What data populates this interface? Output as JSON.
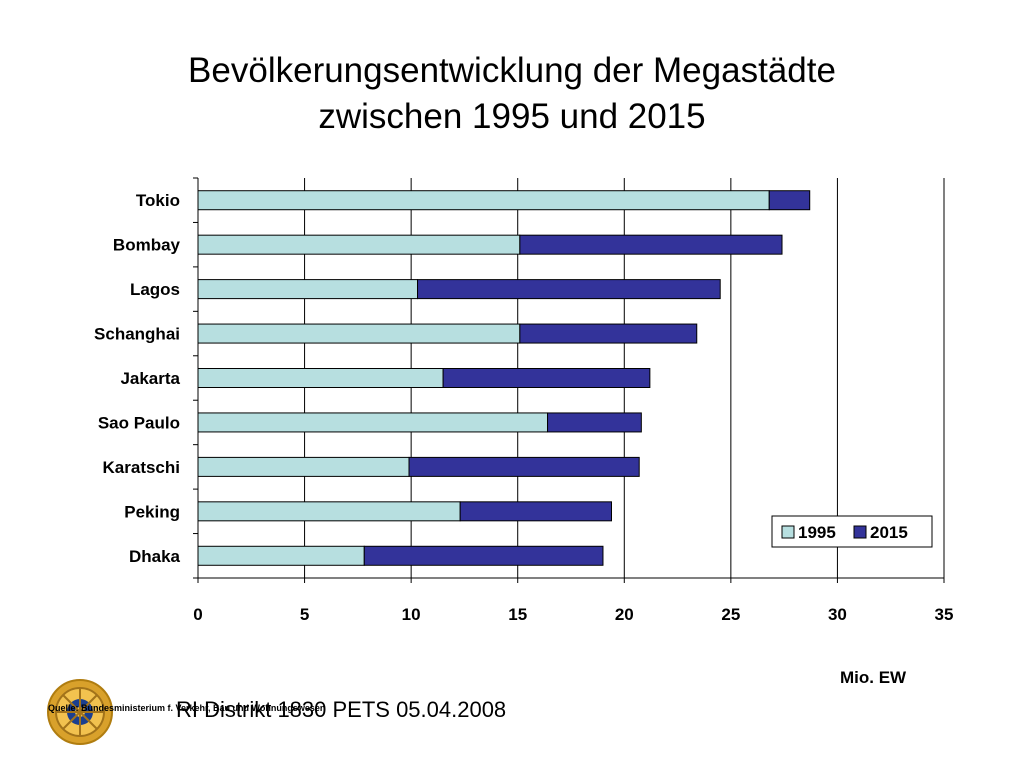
{
  "title": {
    "line1": "Bevölkerungsentwicklung der Megastädte",
    "line2": "zwischen 1995 und 2015"
  },
  "chart_data": {
    "type": "bar",
    "orientation": "horizontal",
    "stacked": true,
    "categories": [
      "Tokio",
      "Bombay",
      "Lagos",
      "Schanghai",
      "Jakarta",
      "Sao Paulo",
      "Karatschi",
      "Peking",
      "Dhaka"
    ],
    "series": [
      {
        "name": "1995",
        "values": [
          26.8,
          15.1,
          10.3,
          15.1,
          11.5,
          16.4,
          9.9,
          12.3,
          7.8
        ],
        "color": "#b7dfe0"
      },
      {
        "name": "2015",
        "values": [
          1.9,
          12.3,
          14.2,
          8.3,
          9.7,
          4.4,
          10.8,
          7.1,
          11.2
        ],
        "color": "#33339a"
      }
    ],
    "xlim": [
      0,
      35
    ],
    "xticks": [
      "0",
      "5",
      "10",
      "15",
      "20",
      "25",
      "30",
      "35"
    ],
    "xlabel": "Mio. EW",
    "grid": true,
    "legend_position": "bottom-right"
  },
  "footer": {
    "text": "RI Distrikt 1830 PETS 05.04.2008",
    "source": "Quelle: Bundesministerium f. Verkehr, Bau und Wohnungswesen"
  },
  "logo": {
    "icon": "rotary-wheel-icon"
  }
}
